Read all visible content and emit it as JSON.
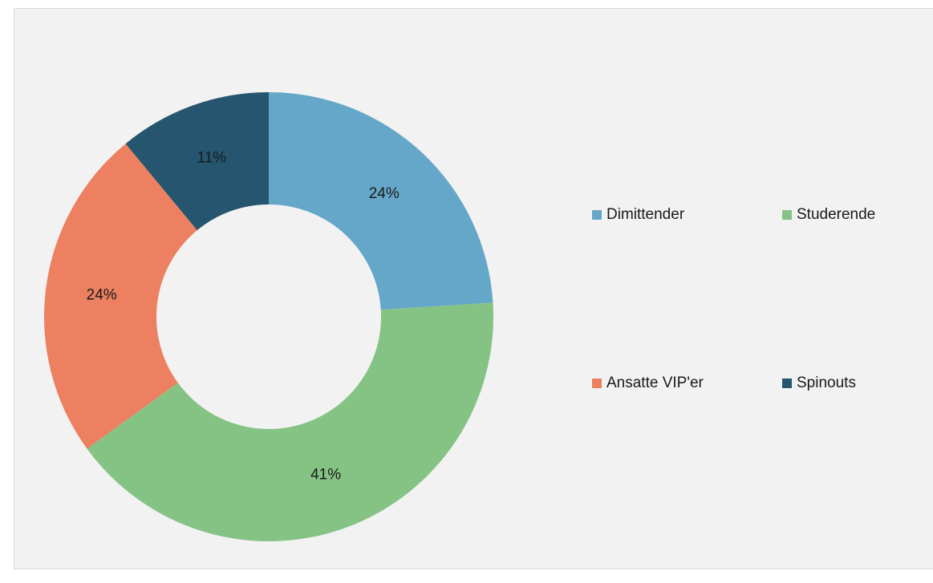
{
  "chart_data": {
    "type": "donut",
    "categories": [
      "Dimittender",
      "Studerende",
      "Ansatte VIP'er",
      "Spinouts"
    ],
    "values": [
      24,
      41,
      24,
      11
    ],
    "value_labels": [
      "24%",
      "41%",
      "24%",
      "11%"
    ],
    "colors": [
      "#65a7c9",
      "#85c385",
      "#ec8060",
      "#26566f"
    ],
    "legend": "right"
  }
}
